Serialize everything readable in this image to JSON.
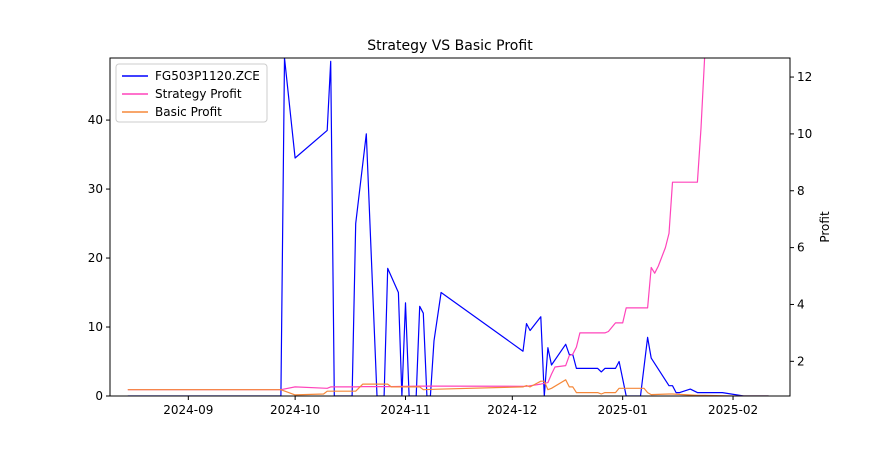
{
  "chart_data": {
    "type": "line",
    "title": "Strategy VS Basic Profit",
    "xlabel": "",
    "ylabel_left": "",
    "ylabel_right": "Profit",
    "x_ticks": [
      "2024-09",
      "2024-10",
      "2024-11",
      "2024-12",
      "2025-01",
      "2025-02"
    ],
    "x_range": [
      "2024-08-10",
      "2025-02-17"
    ],
    "y_left_ticks": [
      0,
      10,
      20,
      30,
      40
    ],
    "y_left_range": [
      0,
      49
    ],
    "y_right_ticks": [
      2,
      4,
      6,
      8,
      10,
      12
    ],
    "y_right_range": [
      0.78,
      12.67
    ],
    "legend_position": "upper left",
    "grid": false,
    "series": [
      {
        "name": "FG503P1120.ZCE",
        "axis": "left",
        "color": "#0000ff",
        "points": [
          [
            "2024-08-15",
            0
          ],
          [
            "2024-09-27",
            0
          ],
          [
            "2024-09-28",
            49
          ],
          [
            "2024-10-01",
            34.5
          ],
          [
            "2024-10-10",
            38.5
          ],
          [
            "2024-10-11",
            48.5
          ],
          [
            "2024-10-12",
            0
          ],
          [
            "2024-10-17",
            0
          ],
          [
            "2024-10-18",
            25
          ],
          [
            "2024-10-21",
            38
          ],
          [
            "2024-10-24",
            0
          ],
          [
            "2024-10-26",
            0
          ],
          [
            "2024-10-27",
            18.5
          ],
          [
            "2024-10-30",
            15
          ],
          [
            "2024-10-31",
            0
          ],
          [
            "2024-11-01",
            13.5
          ],
          [
            "2024-11-02",
            0
          ],
          [
            "2024-11-04",
            0
          ],
          [
            "2024-11-05",
            13
          ],
          [
            "2024-11-06",
            12
          ],
          [
            "2024-11-07",
            0
          ],
          [
            "2024-11-08",
            0
          ],
          [
            "2024-11-09",
            8
          ],
          [
            "2024-11-11",
            15
          ],
          [
            "2024-12-04",
            6.5
          ],
          [
            "2024-12-05",
            10.5
          ],
          [
            "2024-12-06",
            9.5
          ],
          [
            "2024-12-09",
            11.5
          ],
          [
            "2024-12-10",
            0
          ],
          [
            "2024-12-11",
            7
          ],
          [
            "2024-12-12",
            4.5
          ],
          [
            "2024-12-16",
            7.5
          ],
          [
            "2024-12-17",
            6
          ],
          [
            "2024-12-18",
            6
          ],
          [
            "2024-12-19",
            4
          ],
          [
            "2024-12-25",
            4
          ],
          [
            "2024-12-26",
            3.5
          ],
          [
            "2024-12-27",
            4
          ],
          [
            "2024-12-30",
            4
          ],
          [
            "2024-12-31",
            5
          ],
          [
            "2025-01-02",
            0
          ],
          [
            "2025-01-06",
            0
          ],
          [
            "2025-01-08",
            8.5
          ],
          [
            "2025-01-09",
            5.5
          ],
          [
            "2025-01-14",
            1.5
          ],
          [
            "2025-01-15",
            1.5
          ],
          [
            "2025-01-16",
            0.5
          ],
          [
            "2025-01-17",
            0.5
          ],
          [
            "2025-01-20",
            1
          ],
          [
            "2025-01-22",
            0.5
          ],
          [
            "2025-01-29",
            0.5
          ],
          [
            "2025-02-04",
            0
          ],
          [
            "2025-02-11",
            0
          ]
        ]
      },
      {
        "name": "Strategy Profit",
        "axis": "right",
        "color": "#ff44bb",
        "points": [
          [
            "2024-08-15",
            1
          ],
          [
            "2024-09-27",
            1
          ],
          [
            "2024-10-01",
            1.1
          ],
          [
            "2024-10-10",
            1.05
          ],
          [
            "2024-10-11",
            1.1
          ],
          [
            "2024-10-18",
            1.1
          ],
          [
            "2024-10-20",
            1.11
          ],
          [
            "2024-10-26",
            1.11
          ],
          [
            "2024-10-28",
            1.11
          ],
          [
            "2024-11-05",
            1.13
          ],
          [
            "2024-11-11",
            1.13
          ],
          [
            "2024-12-05",
            1.12
          ],
          [
            "2024-12-09",
            1.2
          ],
          [
            "2024-12-11",
            1.25
          ],
          [
            "2024-12-12",
            1.55
          ],
          [
            "2024-12-13",
            1.8
          ],
          [
            "2024-12-16",
            1.85
          ],
          [
            "2024-12-17",
            2.2
          ],
          [
            "2024-12-18",
            2.25
          ],
          [
            "2024-12-19",
            2.5
          ],
          [
            "2024-12-20",
            3.0
          ],
          [
            "2024-12-27",
            3.0
          ],
          [
            "2024-12-28",
            3.05
          ],
          [
            "2024-12-30",
            3.35
          ],
          [
            "2024-12-31",
            3.35
          ],
          [
            "2025-01-01",
            3.35
          ],
          [
            "2025-01-02",
            3.88
          ],
          [
            "2025-01-08",
            3.88
          ],
          [
            "2025-01-09",
            5.3
          ],
          [
            "2025-01-10",
            5.1
          ],
          [
            "2025-01-11",
            5.35
          ],
          [
            "2025-01-13",
            6.0
          ],
          [
            "2025-01-14",
            6.5
          ],
          [
            "2025-01-15",
            8.3
          ],
          [
            "2025-01-16",
            8.3
          ],
          [
            "2025-01-22",
            8.3
          ],
          [
            "2025-01-23",
            10.2
          ],
          [
            "2025-01-24",
            12.67
          ]
        ]
      },
      {
        "name": "Basic Profit",
        "axis": "right",
        "color": "#f5883a",
        "points": [
          [
            "2024-08-15",
            1
          ],
          [
            "2024-09-27",
            1
          ],
          [
            "2024-10-01",
            0.82
          ],
          [
            "2024-10-09",
            0.85
          ],
          [
            "2024-10-10",
            0.95
          ],
          [
            "2024-10-18",
            0.95
          ],
          [
            "2024-10-20",
            1.2
          ],
          [
            "2024-10-27",
            1.2
          ],
          [
            "2024-10-28",
            1.1
          ],
          [
            "2024-11-05",
            1.1
          ],
          [
            "2024-11-06",
            1.0
          ],
          [
            "2024-11-10",
            1.02
          ],
          [
            "2024-12-04",
            1.1
          ],
          [
            "2024-12-05",
            1.15
          ],
          [
            "2024-12-06",
            1.1
          ],
          [
            "2024-12-09",
            1.3
          ],
          [
            "2024-12-10",
            1.3
          ],
          [
            "2024-12-11",
            1.0
          ],
          [
            "2024-12-12",
            1.05
          ],
          [
            "2024-12-16",
            1.35
          ],
          [
            "2024-12-17",
            1.1
          ],
          [
            "2024-12-18",
            1.1
          ],
          [
            "2024-12-19",
            0.9
          ],
          [
            "2024-12-25",
            0.9
          ],
          [
            "2024-12-26",
            0.85
          ],
          [
            "2024-12-27",
            0.9
          ],
          [
            "2024-12-30",
            0.9
          ],
          [
            "2024-12-31",
            1.05
          ],
          [
            "2025-01-07",
            1.05
          ],
          [
            "2025-01-08",
            0.9
          ],
          [
            "2025-01-09",
            0.83
          ],
          [
            "2025-01-14",
            0.85
          ],
          [
            "2025-01-15",
            0.85
          ],
          [
            "2025-01-22",
            0.8
          ],
          [
            "2025-01-24",
            0.8
          ],
          [
            "2025-02-01",
            0.78
          ],
          [
            "2025-02-11",
            0.78
          ]
        ]
      }
    ]
  }
}
